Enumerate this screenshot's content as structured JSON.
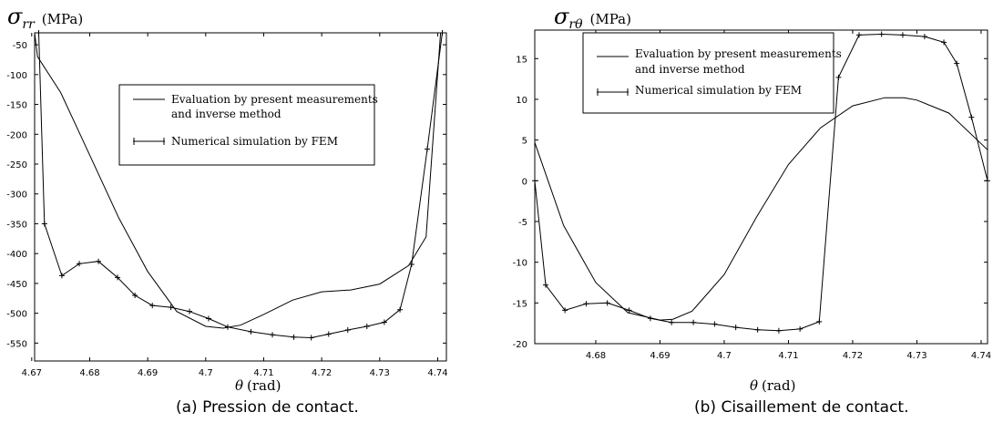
{
  "chart_data": [
    {
      "type": "line",
      "y_symbol": "σ",
      "y_subscript": "rr",
      "y_unit": "(MPa)",
      "x_symbol": "θ",
      "x_unit": "(rad)",
      "caption": "(a) Pression de contact.",
      "xlim": [
        4.6705,
        4.7415
      ],
      "ylim": [
        -580,
        -30
      ],
      "xticks": [
        4.67,
        4.68,
        4.69,
        4.7,
        4.71,
        4.72,
        4.73,
        4.74
      ],
      "yticks": [
        -50,
        -100,
        -150,
        -200,
        -250,
        -300,
        -350,
        -400,
        -450,
        -500,
        -550
      ],
      "grid": false,
      "legend": {
        "position": "upper-center",
        "entries": [
          {
            "lines": [
              "Evaluation by present measurements",
              "and inverse method"
            ],
            "style": "line"
          },
          {
            "lines": [
              "Numerical simulation by FEM"
            ],
            "style": "line-plus"
          }
        ]
      },
      "series": [
        {
          "name": "Evaluation by present measurements and inverse method",
          "style": "line",
          "x": [
            4.6705,
            4.671,
            4.675,
            4.68,
            4.685,
            4.69,
            4.695,
            4.7,
            4.703,
            4.706,
            4.71,
            4.715,
            4.72,
            4.725,
            4.73,
            4.735,
            4.738,
            4.7405
          ],
          "y": [
            -30,
            -70,
            -130,
            -235,
            -340,
            -430,
            -497,
            -522,
            -525,
            -520,
            -502,
            -478,
            -464,
            -461,
            -451,
            -420,
            -372,
            -30
          ]
        },
        {
          "name": "Numerical simulation by FEM",
          "style": "line-plus",
          "x": [
            4.6712,
            4.6722,
            4.6752,
            4.6782,
            4.6815,
            4.6848,
            4.6878,
            4.6908,
            4.694,
            4.6972,
            4.7005,
            4.7038,
            4.7078,
            4.7115,
            4.7152,
            4.7182,
            4.7212,
            4.7245,
            4.7278,
            4.7308,
            4.7335,
            4.7355,
            4.7382,
            4.7408
          ],
          "y": [
            -30,
            -350,
            -437,
            -417,
            -413,
            -440,
            -470,
            -487,
            -490,
            -497,
            -509,
            -523,
            -531,
            -536,
            -540,
            -541,
            -535,
            -528,
            -522,
            -515,
            -494,
            -418,
            -225,
            -30
          ]
        }
      ]
    },
    {
      "type": "line",
      "y_symbol": "σ",
      "y_subscript": "rθ",
      "y_unit": "(MPa)",
      "x_symbol": "θ",
      "x_unit": "(rad)",
      "caption": "(b) Cisaillement de contact.",
      "xlim": [
        4.6705,
        4.741
      ],
      "ylim": [
        -20,
        18.5
      ],
      "xticks": [
        4.68,
        4.69,
        4.7,
        4.71,
        4.72,
        4.73,
        4.74
      ],
      "yticks": [
        15,
        10,
        5,
        0,
        -5,
        -10,
        -15,
        -20
      ],
      "grid": false,
      "legend": {
        "position": "upper-center",
        "entries": [
          {
            "lines": [
              "Evaluation by present measurements",
              "and inverse method"
            ],
            "style": "line"
          },
          {
            "lines": [
              "Numerical simulation by FEM"
            ],
            "style": "line-plus"
          }
        ]
      },
      "series": [
        {
          "name": "Evaluation by present measurements and inverse method",
          "style": "line",
          "x": [
            4.6705,
            4.675,
            4.68,
            4.685,
            4.69,
            4.692,
            4.695,
            4.7,
            4.705,
            4.71,
            4.715,
            4.72,
            4.725,
            4.728,
            4.73,
            4.735,
            4.741
          ],
          "y": [
            4.7,
            -5.5,
            -12.5,
            -16.2,
            -17.1,
            -17,
            -16,
            -11.5,
            -4.5,
            2,
            6.5,
            9.2,
            10.2,
            10.2,
            9.9,
            8.3,
            3.8
          ]
        },
        {
          "name": "Numerical simulation by FEM",
          "style": "line-plus",
          "x": [
            4.6705,
            4.6722,
            4.6752,
            4.6785,
            4.6818,
            4.6852,
            4.6885,
            4.6918,
            4.6952,
            4.6985,
            4.7018,
            4.7052,
            4.7085,
            4.7118,
            4.7148,
            4.7178,
            4.721,
            4.7245,
            4.7278,
            4.7312,
            4.7342,
            4.7362,
            4.7385,
            4.741
          ],
          "y": [
            0,
            -12.8,
            -15.9,
            -15.1,
            -15,
            -15.9,
            -16.9,
            -17.4,
            -17.4,
            -17.6,
            -18,
            -18.3,
            -18.4,
            -18.2,
            -17.3,
            12.7,
            17.9,
            18,
            17.9,
            17.7,
            17,
            14.4,
            7.8,
            0
          ]
        }
      ]
    }
  ]
}
